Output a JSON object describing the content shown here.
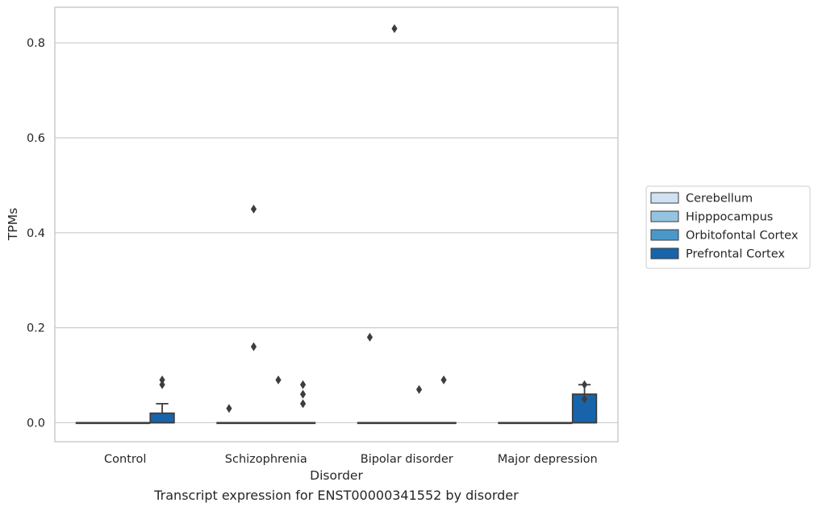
{
  "caption": "Transcript expression for ENST00000341552 by disorder",
  "chart_data": {
    "type": "box",
    "xlabel": "Disorder",
    "ylabel": "TPMs",
    "ylim": [
      -0.04,
      0.875
    ],
    "yticks": [
      0.0,
      0.2,
      0.4,
      0.6,
      0.8
    ],
    "ytick_labels": [
      "0.0",
      "0.2",
      "0.4",
      "0.6",
      "0.8"
    ],
    "grid": "horizontal",
    "legend_placement": "right",
    "categories": [
      "Control",
      "Schizophrenia",
      "Bipolar disorder",
      "Major depression"
    ],
    "series": [
      {
        "name": "Cerebellum",
        "color": "#d0e1f2",
        "boxes": [
          {
            "q1": 0,
            "median": 0,
            "q3": 0,
            "whisker_low": 0,
            "whisker_high": 0,
            "outliers": []
          },
          {
            "q1": 0,
            "median": 0,
            "q3": 0,
            "whisker_low": 0,
            "whisker_high": 0,
            "outliers": [
              0.03
            ]
          },
          {
            "q1": 0,
            "median": 0,
            "q3": 0,
            "whisker_low": 0,
            "whisker_high": 0,
            "outliers": [
              0.18
            ]
          },
          {
            "q1": 0,
            "median": 0,
            "q3": 0,
            "whisker_low": 0,
            "whisker_high": 0,
            "outliers": []
          }
        ]
      },
      {
        "name": "Hipppocampus",
        "color": "#94c4df",
        "boxes": [
          {
            "q1": 0,
            "median": 0,
            "q3": 0,
            "whisker_low": 0,
            "whisker_high": 0,
            "outliers": []
          },
          {
            "q1": 0,
            "median": 0,
            "q3": 0,
            "whisker_low": 0,
            "whisker_high": 0,
            "outliers": [
              0.45,
              0.16
            ]
          },
          {
            "q1": 0,
            "median": 0,
            "q3": 0,
            "whisker_low": 0,
            "whisker_high": 0,
            "outliers": [
              0.83
            ]
          },
          {
            "q1": 0,
            "median": 0,
            "q3": 0,
            "whisker_low": 0,
            "whisker_high": 0,
            "outliers": []
          }
        ]
      },
      {
        "name": "Orbitofontal Cortex",
        "color": "#4a98c9",
        "boxes": [
          {
            "q1": 0,
            "median": 0,
            "q3": 0,
            "whisker_low": 0,
            "whisker_high": 0,
            "outliers": []
          },
          {
            "q1": 0,
            "median": 0,
            "q3": 0,
            "whisker_low": 0,
            "whisker_high": 0,
            "outliers": [
              0.09
            ]
          },
          {
            "q1": 0,
            "median": 0,
            "q3": 0,
            "whisker_low": 0,
            "whisker_high": 0,
            "outliers": [
              0.07
            ]
          },
          {
            "q1": 0,
            "median": 0,
            "q3": 0,
            "whisker_low": 0,
            "whisker_high": 0,
            "outliers": []
          }
        ]
      },
      {
        "name": "Prefrontal Cortex",
        "color": "#1764ab",
        "boxes": [
          {
            "q1": 0,
            "median": 0,
            "q3": 0.02,
            "whisker_low": 0,
            "whisker_high": 0.04,
            "outliers": [
              0.09,
              0.08
            ]
          },
          {
            "q1": 0,
            "median": 0,
            "q3": 0,
            "whisker_low": 0,
            "whisker_high": 0,
            "outliers": [
              0.08,
              0.06,
              0.04
            ]
          },
          {
            "q1": 0,
            "median": 0,
            "q3": 0,
            "whisker_low": 0,
            "whisker_high": 0,
            "outliers": [
              0.09
            ]
          },
          {
            "q1": 0,
            "median": 0,
            "q3": 0.06,
            "whisker_low": 0,
            "whisker_high": 0.08,
            "outliers": [
              0.08,
              0.05
            ]
          }
        ]
      }
    ]
  }
}
